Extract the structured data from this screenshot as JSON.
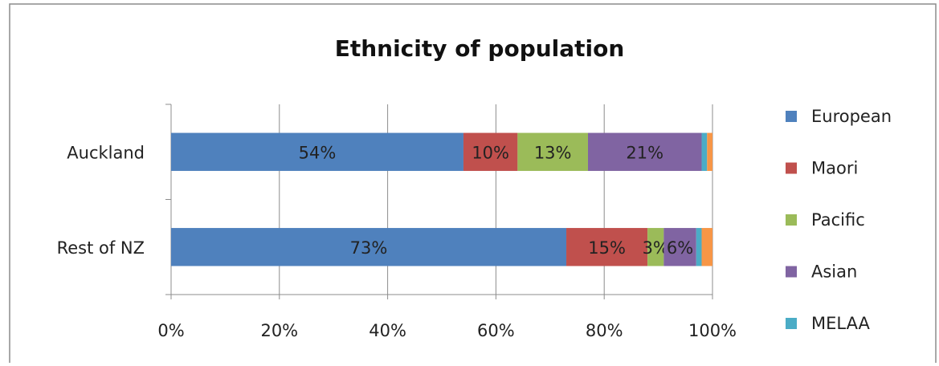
{
  "chart_data": {
    "type": "stacked_bar_horizontal",
    "title": "Ethnicity of population",
    "categories": [
      "Auckland",
      "Rest of NZ"
    ],
    "series": [
      {
        "name": "European",
        "color": "#4F81BD",
        "values": [
          54,
          73
        ],
        "value_labels": [
          "54%",
          "73%"
        ]
      },
      {
        "name": "Maori",
        "color": "#C0504D",
        "values": [
          10,
          15
        ],
        "value_labels": [
          "10%",
          "15%"
        ]
      },
      {
        "name": "Pacific",
        "color": "#9BBB59",
        "values": [
          13,
          3
        ],
        "value_labels": [
          "13%",
          "3%"
        ]
      },
      {
        "name": "Asian",
        "color": "#8064A2",
        "values": [
          21,
          6
        ],
        "value_labels": [
          "21%",
          "6%"
        ]
      },
      {
        "name": "MELAA",
        "color": "#4BACC6",
        "values": [
          1,
          1
        ],
        "value_labels": [
          null,
          null
        ]
      },
      {
        "name": null,
        "color": "#F79646",
        "values": [
          1,
          2
        ],
        "value_labels": [
          null,
          null
        ]
      }
    ],
    "xlim": [
      0,
      100
    ],
    "xticks": [
      {
        "value": 0,
        "label": "0%"
      },
      {
        "value": 20,
        "label": "20%"
      },
      {
        "value": 40,
        "label": "40%"
      },
      {
        "value": 60,
        "label": "60%"
      },
      {
        "value": 80,
        "label": "80%"
      },
      {
        "value": 100,
        "label": "100%"
      }
    ],
    "grid": true,
    "legend": "right"
  }
}
